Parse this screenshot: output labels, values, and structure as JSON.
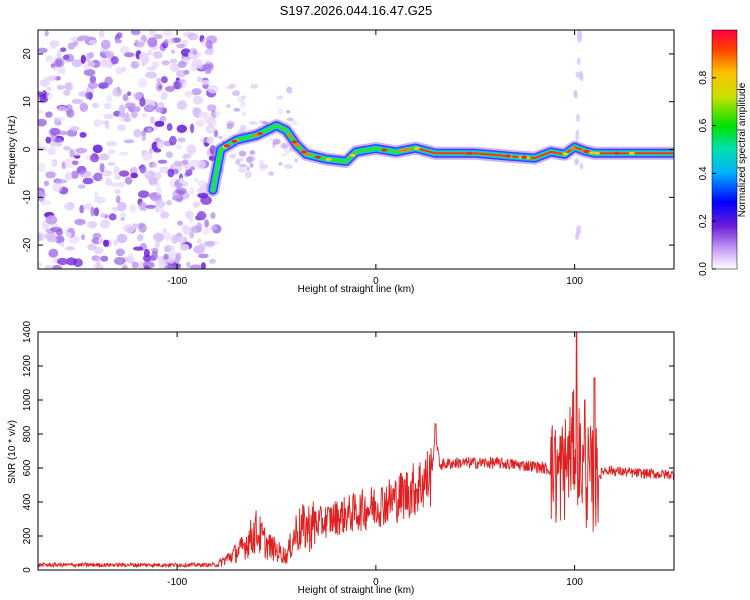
{
  "title": "S197.2026.044.16.47.G25",
  "chart_data": [
    {
      "type": "heatmap",
      "name": "spectrogram",
      "xlabel": "Height of straight line (km)",
      "ylabel": "Frequency (Hz)",
      "xlim": [
        -170,
        150
      ],
      "ylim": [
        -25,
        25
      ],
      "xticks": [
        -100,
        0,
        100
      ],
      "yticks": [
        -20,
        -10,
        0,
        10,
        20
      ],
      "colorbar": {
        "label": "Normalized spectral amplitude",
        "range": [
          0.0,
          1.0
        ],
        "ticks": [
          0.0,
          0.2,
          0.4,
          0.6,
          0.8
        ]
      },
      "ridge": {
        "description": "dominant frequency track",
        "x": [
          -82,
          -78,
          -70,
          -60,
          -50,
          -45,
          -40,
          -35,
          -25,
          -15,
          -10,
          0,
          10,
          20,
          30,
          50,
          70,
          80,
          88,
          95,
          100,
          105,
          110,
          120,
          150
        ],
        "y": [
          -8.5,
          0,
          2,
          3,
          5,
          4,
          1,
          -1,
          -2,
          -2.5,
          -0.5,
          0.2,
          -0.5,
          0.3,
          -0.8,
          -0.8,
          -1.5,
          -1.8,
          -0.5,
          -1,
          0.5,
          -0.3,
          -0.8,
          -0.8,
          -0.8
        ]
      }
    },
    {
      "type": "line",
      "name": "snr",
      "xlabel": "Height of straight line (km)",
      "ylabel": "SNR (10 * v/v)",
      "xlim": [
        -170,
        150
      ],
      "ylim": [
        0,
        1400
      ],
      "xticks": [
        -100,
        0,
        100
      ],
      "yticks": [
        0,
        200,
        400,
        600,
        800,
        1000,
        1200,
        1400
      ],
      "color": "#e02020",
      "trend_x": [
        -170,
        -80,
        -68,
        -60,
        -55,
        -45,
        -40,
        -30,
        -20,
        -10,
        0,
        10,
        20,
        28,
        30,
        32,
        40,
        60,
        80,
        88,
        90,
        95,
        100,
        105,
        110,
        115,
        130,
        150
      ],
      "trend_y": [
        30,
        30,
        120,
        230,
        150,
        80,
        230,
        270,
        310,
        340,
        380,
        420,
        480,
        560,
        820,
        620,
        630,
        630,
        610,
        590,
        550,
        600,
        760,
        560,
        520,
        590,
        570,
        560
      ],
      "peaks": [
        {
          "x": 101,
          "y": 1400
        },
        {
          "x": 110,
          "y": 1130
        },
        {
          "x": 105,
          "y": 1000
        },
        {
          "x": 90,
          "y": 780
        },
        {
          "x": 30,
          "y": 860
        }
      ]
    }
  ]
}
